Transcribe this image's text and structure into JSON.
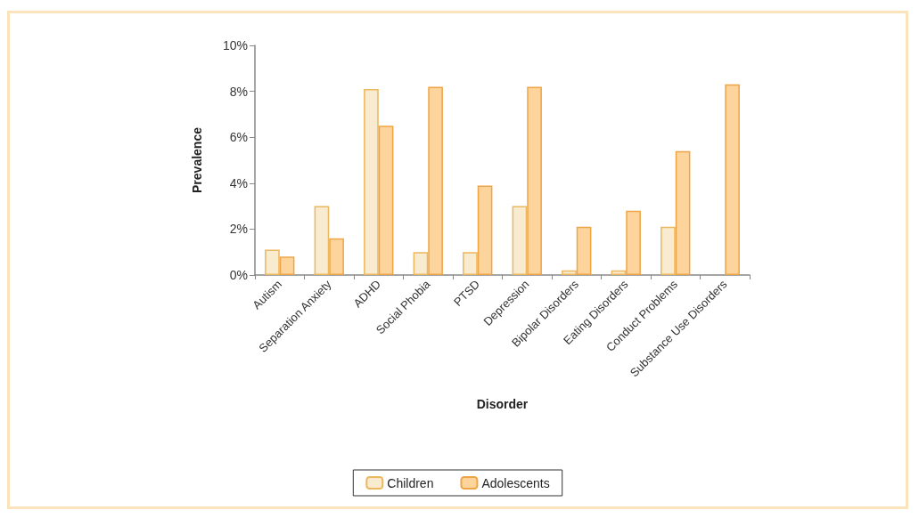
{
  "chart_data": {
    "type": "bar",
    "xlabel": "Disorder",
    "ylabel": "Prevalence",
    "categories": [
      "Autism",
      "Separation Anxiety",
      "ADHD",
      "Social Phobia",
      "PTSD",
      "Depression",
      "Bipolar Disorders",
      "Eating Disorders",
      "Conduct Problems",
      "Substance Use Disorders"
    ],
    "series": [
      {
        "name": "Children",
        "color": "#f8ebcf",
        "values": [
          1.1,
          3.0,
          8.1,
          1.0,
          1.0,
          3.0,
          0.2,
          0.2,
          2.1,
          null
        ]
      },
      {
        "name": "Adolescents",
        "color": "#fcd49c",
        "values": [
          0.8,
          1.6,
          6.5,
          8.2,
          3.9,
          8.2,
          2.1,
          2.8,
          5.4,
          8.3
        ]
      }
    ],
    "ylim": [
      0,
      10
    ],
    "yticks": [
      {
        "value": 0,
        "label": "0%"
      },
      {
        "value": 2,
        "label": "2%"
      },
      {
        "value": 4,
        "label": "4%"
      },
      {
        "value": 6,
        "label": "6%"
      },
      {
        "value": 8,
        "label": "8%"
      },
      {
        "value": 10,
        "label": "10%"
      }
    ],
    "grid": false,
    "legend": "bottom"
  }
}
